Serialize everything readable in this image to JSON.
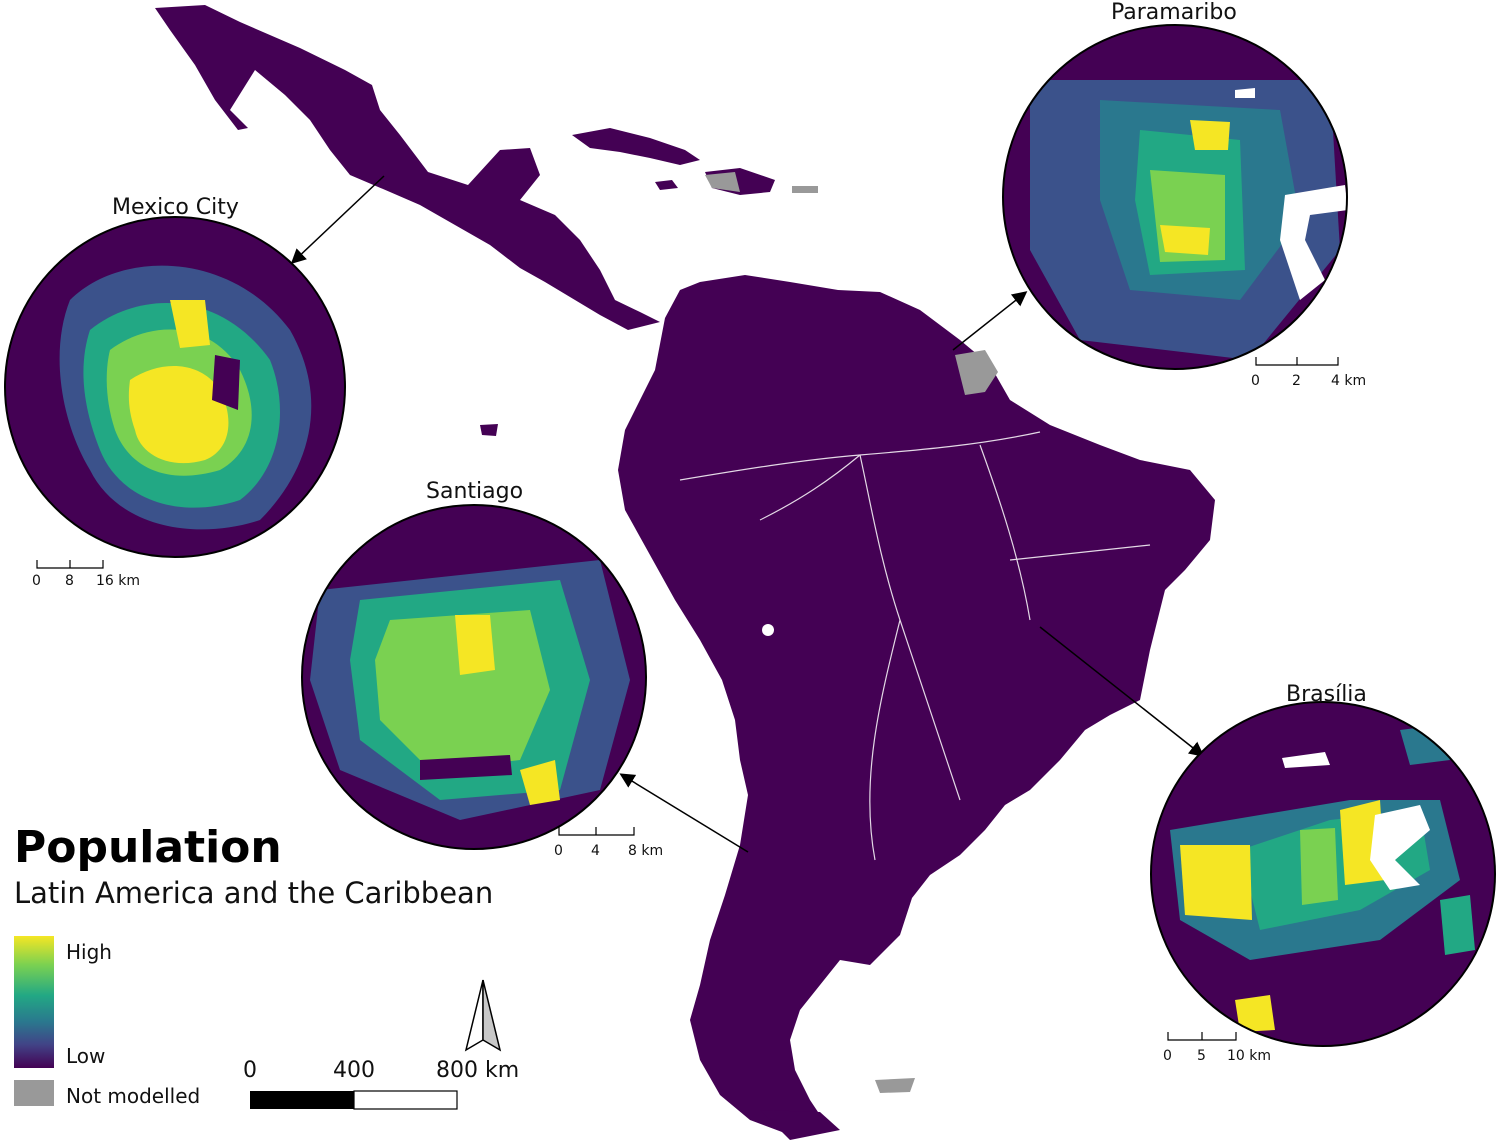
{
  "legend": {
    "title": "Population",
    "subtitle": "Latin America and the Caribbean",
    "high_label": "High",
    "low_label": "Low",
    "not_modelled_label": "Not modelled",
    "colors": {
      "high": "#f5e624",
      "mid": "#22a884",
      "low": "#440154",
      "not_modelled": "#999999"
    }
  },
  "scale_bar": {
    "ticks": [
      "0",
      "400",
      "800 km"
    ]
  },
  "insets": {
    "mexico_city": {
      "title": "Mexico City",
      "scale": [
        "0",
        "8",
        "16 km"
      ]
    },
    "paramaribo": {
      "title": "Paramaribo",
      "scale": [
        "0",
        "2",
        "4 km"
      ]
    },
    "santiago": {
      "title": "Santiago",
      "scale": [
        "0",
        "4",
        "8 km"
      ]
    },
    "brasilia": {
      "title": "Brasília",
      "scale": [
        "0",
        "5",
        "10 km"
      ]
    }
  }
}
